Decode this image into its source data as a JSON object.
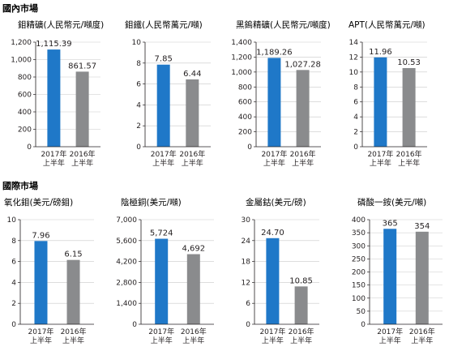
{
  "sections": [
    {
      "title": "國內市場"
    },
    {
      "title": "國際市場"
    }
  ],
  "chart_data": [
    {
      "type": "bar",
      "title": "鉬精礦(人民幣元/噸度)",
      "categories": [
        [
          "2017年",
          "上半年"
        ],
        [
          "2016年",
          "上半年"
        ]
      ],
      "values": [
        1115.39,
        861.57
      ],
      "value_labels": [
        "1,115.39",
        "861.57"
      ],
      "yticks": [
        "0",
        "200",
        "400",
        "600",
        "800",
        "1,000",
        "1,200"
      ],
      "ylim": [
        0,
        1200
      ],
      "colors": [
        "#1f78c8",
        "#8a8b8d"
      ]
    },
    {
      "type": "bar",
      "title": "鉬鐵(人民幣萬元/噸)",
      "categories": [
        [
          "2017年",
          "上半年"
        ],
        [
          "2016年",
          "上半年"
        ]
      ],
      "values": [
        7.85,
        6.44
      ],
      "value_labels": [
        "7.85",
        "6.44"
      ],
      "yticks": [
        "0",
        "2",
        "4",
        "6",
        "8",
        "10"
      ],
      "ylim": [
        0,
        10
      ],
      "colors": [
        "#1f78c8",
        "#8a8b8d"
      ]
    },
    {
      "type": "bar",
      "title": "黑鎢精礦(人民幣元/噸度)",
      "categories": [
        [
          "2017年",
          "上半年"
        ],
        [
          "2016年",
          "上半年"
        ]
      ],
      "values": [
        1189.26,
        1027.28
      ],
      "value_labels": [
        "1,189.26",
        "1,027.28"
      ],
      "yticks": [
        "0",
        "200",
        "400",
        "600",
        "800",
        "1,000",
        "1,200",
        "1,400"
      ],
      "ylim": [
        0,
        1400
      ],
      "colors": [
        "#1f78c8",
        "#8a8b8d"
      ]
    },
    {
      "type": "bar",
      "title": "APT(人民幣萬元/噸)",
      "categories": [
        [
          "2017年",
          "上半年"
        ],
        [
          "2016年",
          "上半年"
        ]
      ],
      "values": [
        11.96,
        10.53
      ],
      "value_labels": [
        "11.96",
        "10.53"
      ],
      "yticks": [
        "0",
        "2",
        "4",
        "6",
        "8",
        "10",
        "12",
        "14"
      ],
      "ylim": [
        0,
        14
      ],
      "colors": [
        "#1f78c8",
        "#8a8b8d"
      ]
    },
    {
      "type": "bar",
      "title": "氧化鉬(美元/磅鉬)",
      "categories": [
        [
          "2017年",
          "上半年"
        ],
        [
          "2016年",
          "上半年"
        ]
      ],
      "values": [
        7.96,
        6.15
      ],
      "value_labels": [
        "7.96",
        "6.15"
      ],
      "yticks": [
        "0",
        "2",
        "4",
        "6",
        "8",
        "10"
      ],
      "ylim": [
        0,
        10
      ],
      "colors": [
        "#1f78c8",
        "#8a8b8d"
      ]
    },
    {
      "type": "bar",
      "title": "陰極銅(美元/噸)",
      "categories": [
        [
          "2017年",
          "上半年"
        ],
        [
          "2016年",
          "上半年"
        ]
      ],
      "values": [
        5724,
        4692
      ],
      "value_labels": [
        "5,724",
        "4,692"
      ],
      "yticks": [
        "0",
        "1,400",
        "2,800",
        "4,200",
        "5,600",
        "7,000"
      ],
      "ylim": [
        0,
        7000
      ],
      "colors": [
        "#1f78c8",
        "#8a8b8d"
      ]
    },
    {
      "type": "bar",
      "title": "金屬鈷(美元/磅)",
      "categories": [
        [
          "2017年",
          "上半年"
        ],
        [
          "2016年",
          "上半年"
        ]
      ],
      "values": [
        24.7,
        10.85
      ],
      "value_labels": [
        "24.70",
        "10.85"
      ],
      "yticks": [
        "0",
        "6",
        "12",
        "18",
        "24",
        "30"
      ],
      "ylim": [
        0,
        30
      ],
      "colors": [
        "#1f78c8",
        "#8a8b8d"
      ]
    },
    {
      "type": "bar",
      "title": "磷酸一銨(美元/噸)",
      "categories": [
        [
          "2017年",
          "上半年"
        ],
        [
          "2016年",
          "上半年"
        ]
      ],
      "values": [
        365,
        354
      ],
      "value_labels": [
        "365",
        "354"
      ],
      "yticks": [
        "0",
        "50",
        "100",
        "150",
        "200",
        "250",
        "300",
        "350",
        "400"
      ],
      "ylim": [
        0,
        400
      ],
      "colors": [
        "#1f78c8",
        "#8a8b8d"
      ]
    }
  ]
}
